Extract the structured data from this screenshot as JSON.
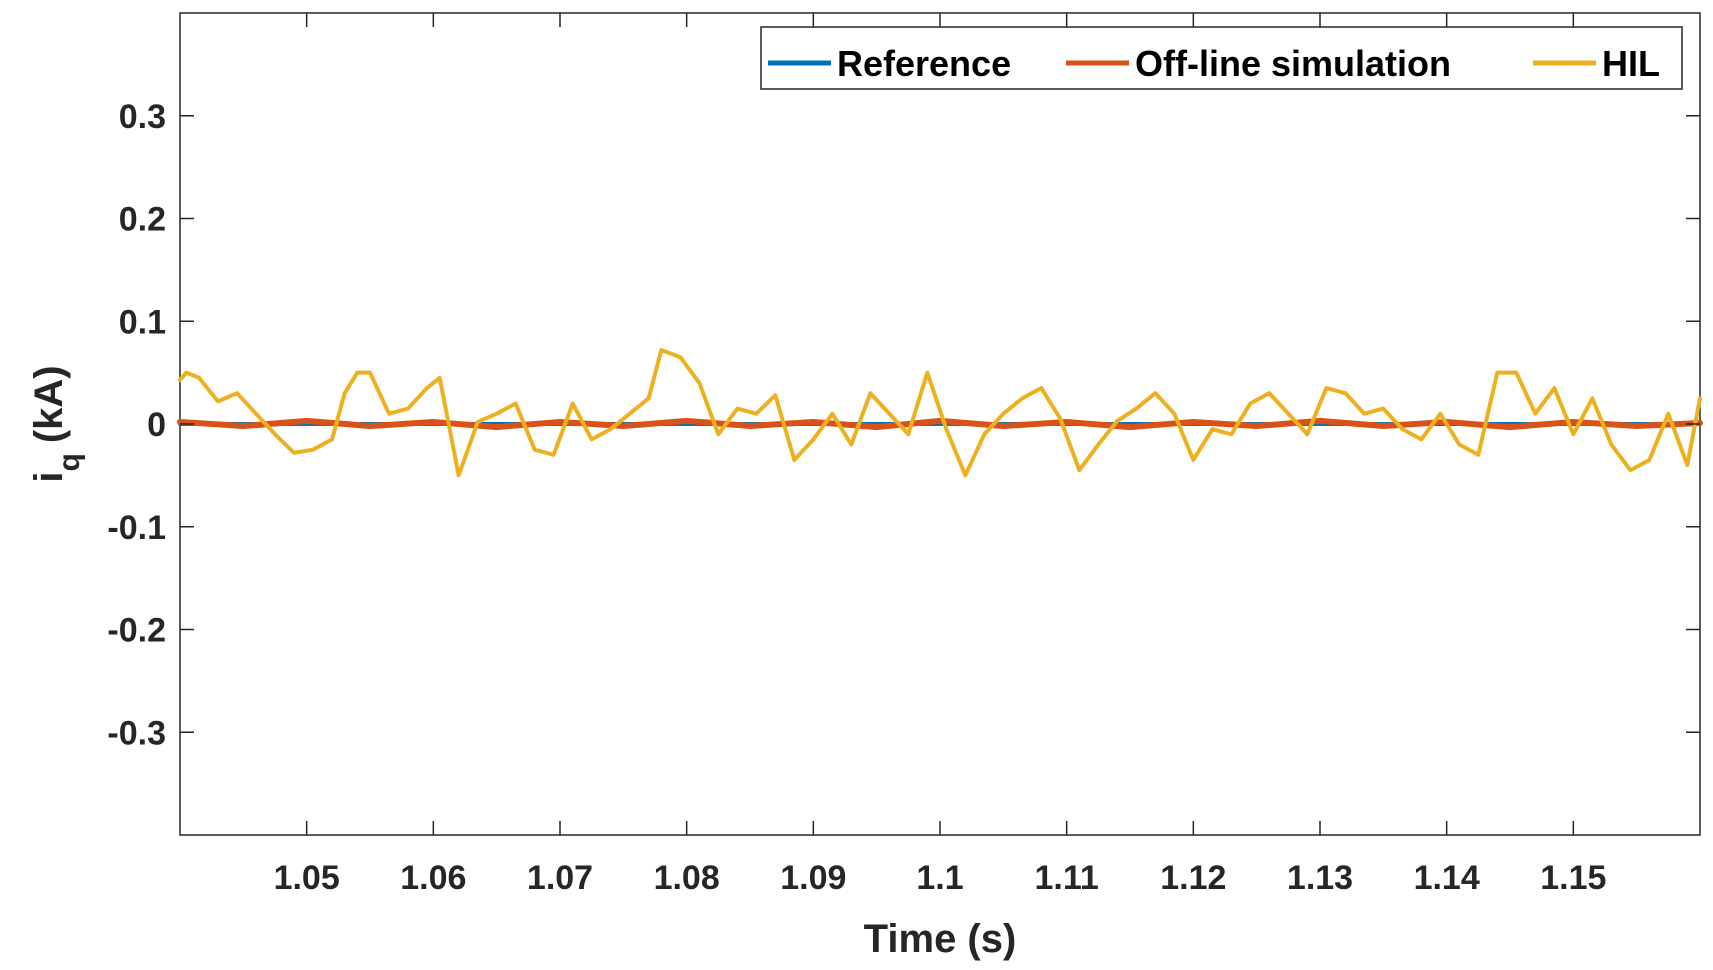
{
  "chart_data": {
    "type": "line",
    "title": "",
    "xlabel": "Time (s)",
    "ylabel": {
      "main": "i",
      "subscript": "q",
      "unit": "(kA)"
    },
    "xlim": [
      1.04,
      1.16
    ],
    "ylim": [
      -0.4,
      0.4
    ],
    "xticks": [
      1.05,
      1.06,
      1.07,
      1.08,
      1.09,
      1.1,
      1.11,
      1.12,
      1.13,
      1.14,
      1.15
    ],
    "xtick_labels": [
      "1.05",
      "1.06",
      "1.07",
      "1.08",
      "1.09",
      "1.1",
      "1.11",
      "1.12",
      "1.13",
      "1.14",
      "1.15"
    ],
    "yticks": [
      0.3,
      0.2,
      0.1,
      0,
      -0.1,
      -0.2,
      -0.3
    ],
    "ytick_labels": [
      "0.3",
      "0.2",
      "0.1",
      "0",
      "-0.1",
      "-0.2",
      "-0.3"
    ],
    "legend_position": "top-right",
    "grid": false,
    "series": [
      {
        "name": "Reference",
        "color": "#0072BD",
        "x": [
          1.04,
          1.16
        ],
        "y": [
          0,
          0
        ]
      },
      {
        "name": "Off-line simulation",
        "color": "#D95319",
        "x": [
          1.04,
          1.045,
          1.05,
          1.055,
          1.06,
          1.065,
          1.07,
          1.075,
          1.08,
          1.085,
          1.09,
          1.095,
          1.1,
          1.105,
          1.11,
          1.115,
          1.12,
          1.125,
          1.13,
          1.135,
          1.14,
          1.145,
          1.15,
          1.155,
          1.16
        ],
        "y": [
          0.002,
          -0.002,
          0.003,
          -0.002,
          0.002,
          -0.003,
          0.002,
          -0.002,
          0.003,
          -0.002,
          0.002,
          -0.003,
          0.003,
          -0.002,
          0.002,
          -0.003,
          0.002,
          -0.002,
          0.003,
          -0.002,
          0.002,
          -0.003,
          0.002,
          -0.002,
          0.001
        ]
      },
      {
        "name": "HIL",
        "color": "#EDB120",
        "x": [
          1.04,
          1.0405,
          1.0415,
          1.043,
          1.0445,
          1.046,
          1.0475,
          1.049,
          1.0505,
          1.052,
          1.053,
          1.054,
          1.055,
          1.0565,
          1.058,
          1.0595,
          1.0605,
          1.062,
          1.0635,
          1.065,
          1.0665,
          1.068,
          1.0695,
          1.071,
          1.0725,
          1.074,
          1.0755,
          1.077,
          1.078,
          1.0795,
          1.081,
          1.0825,
          1.084,
          1.0855,
          1.087,
          1.0885,
          1.09,
          1.0915,
          1.093,
          1.0945,
          1.096,
          1.0975,
          1.099,
          1.1005,
          1.102,
          1.1035,
          1.105,
          1.1065,
          1.108,
          1.1095,
          1.111,
          1.1125,
          1.114,
          1.1155,
          1.117,
          1.1185,
          1.12,
          1.1215,
          1.123,
          1.1245,
          1.126,
          1.1275,
          1.129,
          1.1305,
          1.132,
          1.1335,
          1.135,
          1.1365,
          1.138,
          1.1395,
          1.141,
          1.1425,
          1.144,
          1.1455,
          1.147,
          1.1485,
          1.15,
          1.1515,
          1.153,
          1.1545,
          1.156,
          1.1575,
          1.159,
          1.16
        ],
        "y": [
          0.043,
          0.05,
          0.045,
          0.022,
          0.03,
          0.01,
          -0.01,
          -0.028,
          -0.025,
          -0.015,
          0.03,
          0.05,
          0.05,
          0.01,
          0.015,
          0.035,
          0.045,
          -0.05,
          0.002,
          0.01,
          0.02,
          -0.025,
          -0.03,
          0.02,
          -0.015,
          -0.005,
          0.01,
          0.025,
          0.072,
          0.065,
          0.04,
          -0.01,
          0.015,
          0.01,
          0.028,
          -0.035,
          -0.015,
          0.01,
          -0.02,
          0.03,
          0.01,
          -0.01,
          0.05,
          -0.005,
          -0.05,
          -0.01,
          0.01,
          0.025,
          0.035,
          0.005,
          -0.045,
          -0.02,
          0.003,
          0.015,
          0.03,
          0.01,
          -0.035,
          -0.005,
          -0.01,
          0.02,
          0.03,
          0.01,
          -0.01,
          0.035,
          0.03,
          0.01,
          0.015,
          -0.005,
          -0.015,
          0.01,
          -0.02,
          -0.03,
          0.05,
          0.05,
          0.01,
          0.035,
          -0.01,
          0.025,
          -0.02,
          -0.045,
          -0.035,
          0.01,
          -0.04,
          0.025
        ]
      }
    ]
  }
}
